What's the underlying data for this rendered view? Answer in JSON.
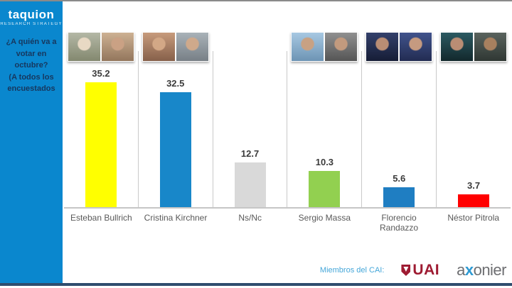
{
  "sidebar": {
    "logo_text": "taquion",
    "logo_subtext": "RESEARCH STRATEGY",
    "question": "¿A quién va a\nvotar en\noctubre?\n(A todos los\nencuestados",
    "bg_color": "#0a87ce",
    "question_color": "#17375e"
  },
  "chart_data": {
    "type": "bar",
    "title": "¿A quién va a votar en octubre? (A todos los encuestados",
    "categories": [
      "Esteban Bullrich",
      "Cristina Kirchner",
      "Ns/Nc",
      "Sergio Massa",
      "Florencio Randazzo",
      "Néstor Pitrola"
    ],
    "values": [
      35.2,
      32.5,
      12.7,
      10.3,
      5.6,
      3.7
    ],
    "bar_colors": [
      "#ffff00",
      "#1887c9",
      "#d9d9d9",
      "#92d050",
      "#1f7ec2",
      "#ff0000"
    ],
    "ylim": [
      0,
      44
    ],
    "value_labels": true,
    "grid": "vertical category separators, no y-axis",
    "legend": "none",
    "separator_color": "#c9c9c9",
    "baseline_color": "#c6c6c6",
    "value_label_color": "#3b3b3b",
    "category_label_color": "#595959"
  },
  "photo_cards": [
    {
      "tiles": [
        [
          "#b4b8a6",
          "#83886f",
          "#e8d9c4"
        ],
        [
          "#cdb193",
          "#93765c",
          "#caa184"
        ]
      ]
    },
    {
      "tiles": [
        [
          "#c79b7c",
          "#86604a",
          "#d3a886"
        ],
        [
          "#a9b2b8",
          "#777f86",
          "#cfa98b"
        ]
      ]
    },
    null,
    {
      "tiles": [
        [
          "#a7c8e2",
          "#6d94b4",
          "#c8a183"
        ],
        [
          "#909090",
          "#555555",
          "#c29a7e"
        ]
      ]
    },
    {
      "tiles": [
        [
          "#33406b",
          "#161d36",
          "#b98d74"
        ],
        [
          "#41538c",
          "#222c52",
          "#c59a80"
        ]
      ]
    },
    {
      "tiles": [
        [
          "#2c5a62",
          "#12282c",
          "#b98d74"
        ],
        [
          "#5a635e",
          "#2f3733",
          "#a8805f"
        ]
      ]
    }
  ],
  "footer": {
    "members_label": "Miembros del CAI:",
    "uai_text": "UAI",
    "uai_color": "#9e1b32",
    "axonier_prefix": "a",
    "axonier_x": "x",
    "axonier_suffix": "onier",
    "axonier_x_color": "#2d9ad3"
  }
}
